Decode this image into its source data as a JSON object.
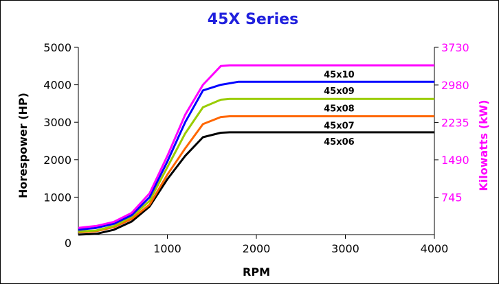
{
  "chart_data": {
    "type": "line",
    "title": "45X Series",
    "xlabel": "RPM",
    "ylabel": "Horespower (HP)",
    "y2label": "Kilowatts (kW)",
    "xlim": [
      0,
      4000
    ],
    "ylim": [
      0,
      5000
    ],
    "y2lim": [
      0,
      3730
    ],
    "x_ticks": [
      1000,
      2000,
      3000,
      4000
    ],
    "x_tick_labels": [
      "1000",
      "2000",
      "3000",
      "4000"
    ],
    "y_ticks": [
      1000,
      2000,
      3000,
      4000,
      5000
    ],
    "y_tick_labels": [
      "1000",
      "2000",
      "3000",
      "4000",
      "5000"
    ],
    "origin_label": "0",
    "y2_ticks": [
      745,
      1490,
      2235,
      2980,
      3730
    ],
    "y2_tick_labels": [
      "745",
      "1490",
      "2235",
      "2980",
      "3730"
    ],
    "grid": false,
    "legend": "none",
    "colors": {
      "title": "#2020dd",
      "right_axis": "#ff00ff",
      "axis": "#000000"
    },
    "series": [
      {
        "name": "45x06",
        "color": "#000000",
        "x": [
          0,
          200,
          400,
          600,
          800,
          1000,
          1200,
          1400,
          1600,
          1700,
          4000
        ],
        "y": [
          0,
          20,
          130,
          350,
          750,
          1480,
          2100,
          2600,
          2720,
          2730,
          2730
        ]
      },
      {
        "name": "45x07",
        "color": "#ff6600",
        "x": [
          0,
          200,
          400,
          600,
          800,
          1000,
          1200,
          1400,
          1600,
          1700,
          4000
        ],
        "y": [
          60,
          90,
          200,
          420,
          800,
          1600,
          2300,
          2950,
          3140,
          3160,
          3160
        ]
      },
      {
        "name": "45x08",
        "color": "#99cc00",
        "x": [
          0,
          200,
          400,
          600,
          800,
          1000,
          1200,
          1400,
          1600,
          1700,
          4000
        ],
        "y": [
          80,
          110,
          230,
          480,
          900,
          1800,
          2700,
          3400,
          3600,
          3620,
          3620
        ]
      },
      {
        "name": "45x09",
        "color": "#0000ff",
        "x": [
          0,
          200,
          400,
          600,
          800,
          1000,
          1200,
          1400,
          1600,
          1800,
          4000
        ],
        "y": [
          130,
          180,
          290,
          520,
          1000,
          1950,
          3000,
          3850,
          4000,
          4080,
          4080
        ]
      },
      {
        "name": "45x10",
        "color": "#ff00ff",
        "x": [
          0,
          200,
          400,
          600,
          800,
          1000,
          1200,
          1400,
          1600,
          1700,
          4000
        ],
        "y": [
          180,
          230,
          340,
          580,
          1100,
          2100,
          3200,
          4000,
          4500,
          4520,
          4520
        ]
      }
    ]
  }
}
